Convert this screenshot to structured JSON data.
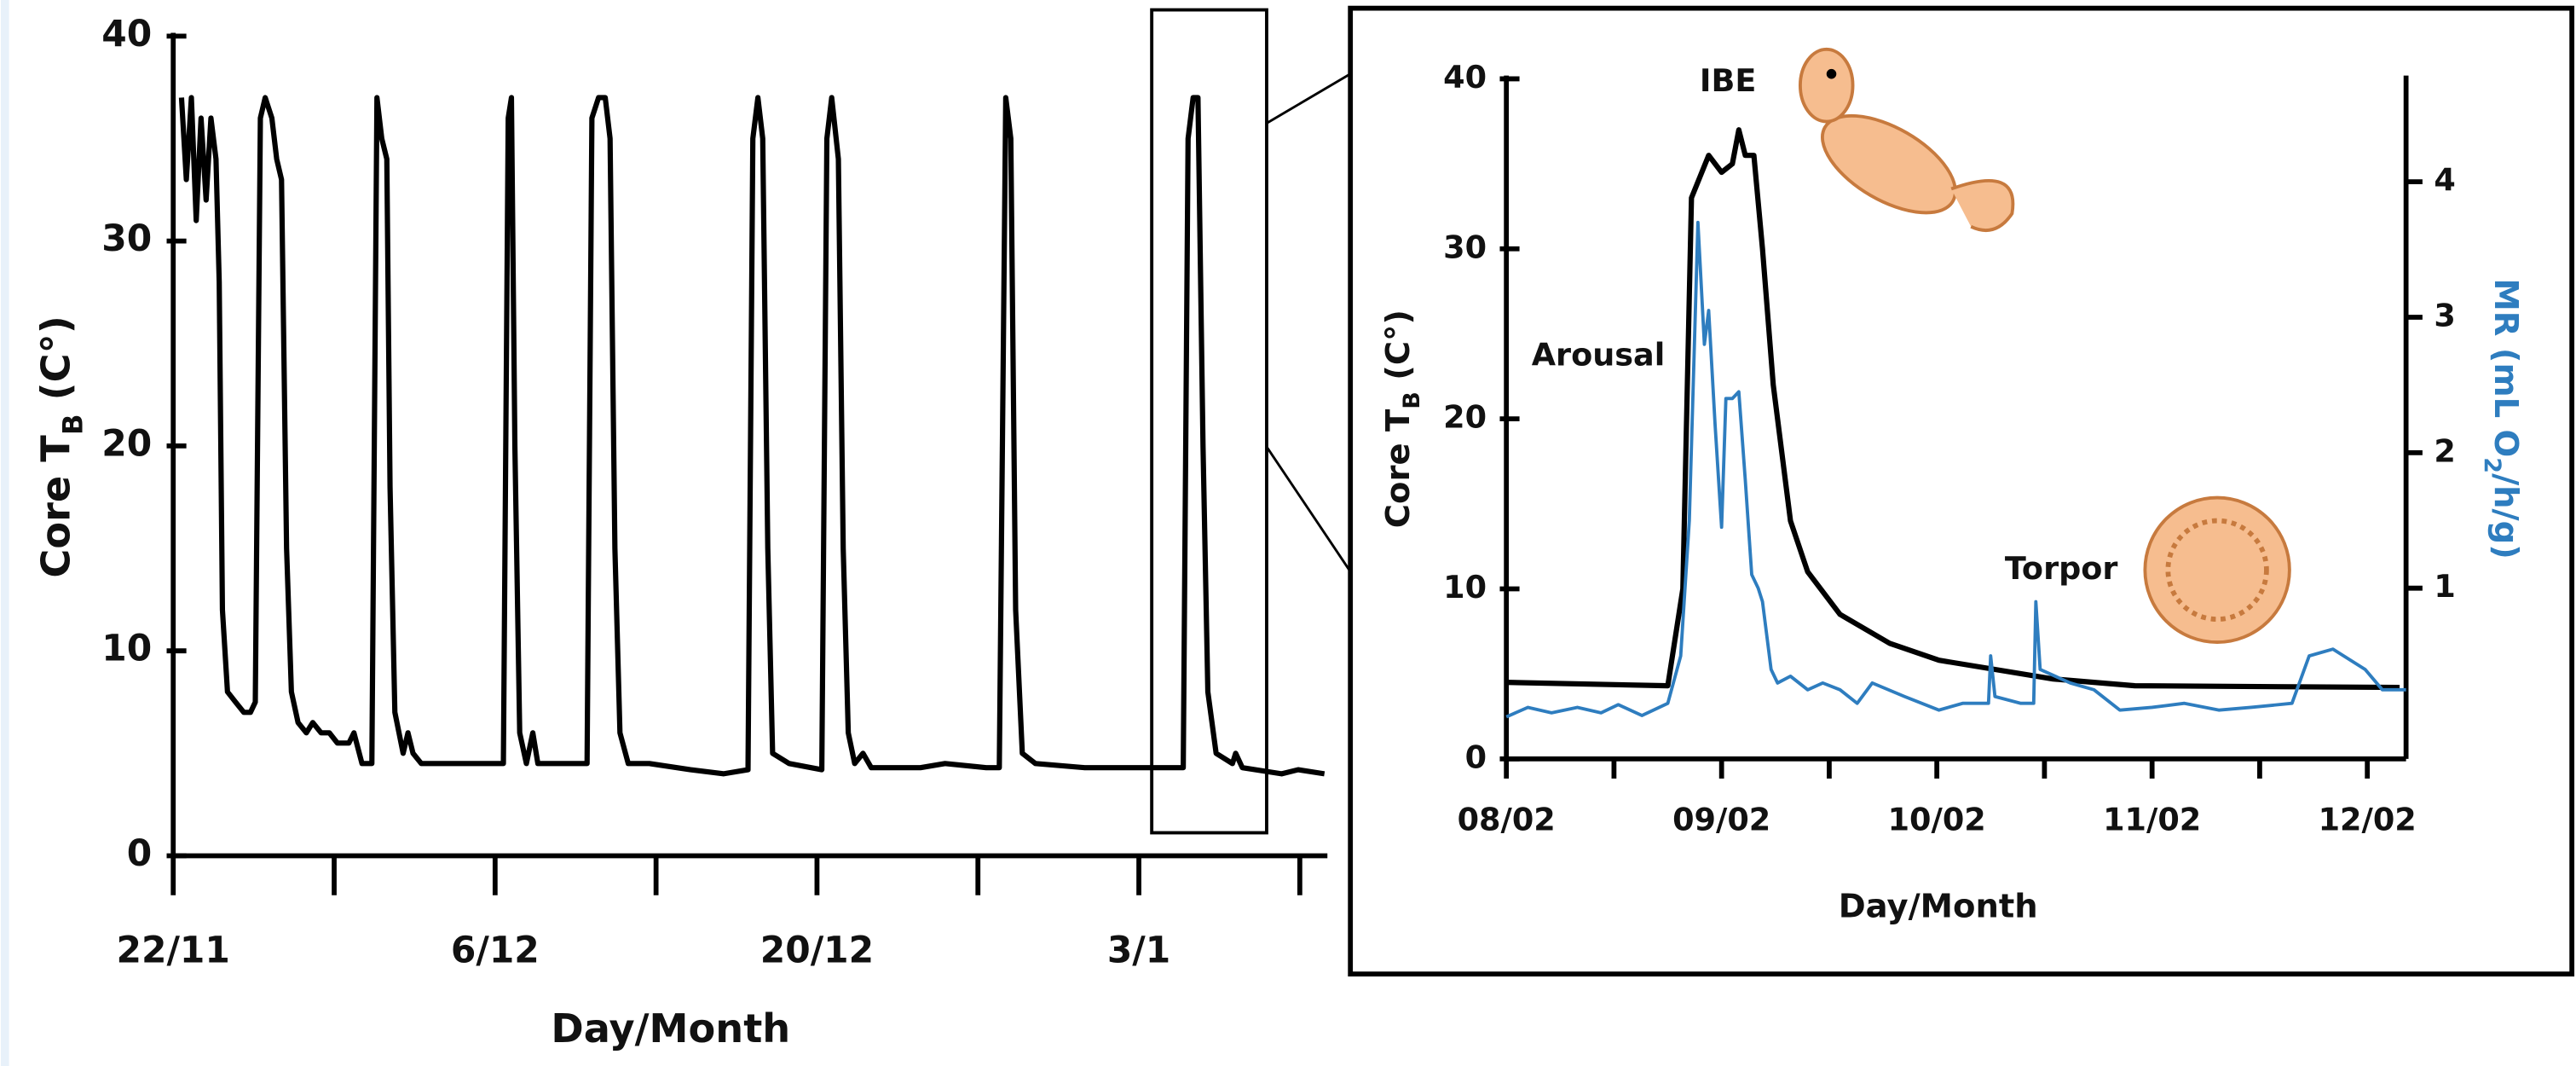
{
  "chart_data": [
    {
      "type": "line",
      "xlabel": "Day/Month",
      "ylabel": [
        "Core T",
        "B",
        " (C°)"
      ],
      "xlim": [
        0,
        50.2
      ],
      "ylim": [
        0,
        40
      ],
      "yticks": [
        0,
        10,
        20,
        30,
        40
      ],
      "xticks": [
        {
          "value": 0,
          "label": "22/11"
        },
        {
          "value": 7,
          "label": null
        },
        {
          "value": 14,
          "label": "6/12"
        },
        {
          "value": 21,
          "label": null
        },
        {
          "value": 28,
          "label": "20/12"
        },
        {
          "value": 35,
          "label": null
        },
        {
          "value": 42,
          "label": "3/1"
        },
        {
          "value": 49,
          "label": null
        }
      ],
      "series": [
        {
          "color": "#000000",
          "x": [
            0.36,
            0.57,
            0.79,
            1.0,
            1.21,
            1.43,
            1.64,
            1.86,
            2.0,
            2.14,
            2.36,
            2.71,
            3.07,
            3.36,
            3.57,
            3.79,
            4.0,
            4.29,
            4.5,
            4.71,
            4.93,
            5.14,
            5.43,
            5.79,
            6.07,
            6.43,
            6.79,
            7.14,
            7.64,
            7.86,
            8.21,
            8.64,
            8.86,
            9.07,
            9.29,
            9.43,
            9.64,
            10.0,
            10.21,
            10.43,
            10.79,
            11.43,
            12.5,
            13.93,
            14.36,
            14.57,
            14.71,
            14.86,
            15.07,
            15.36,
            15.64,
            15.86,
            17.14,
            18.0,
            18.21,
            18.5,
            18.79,
            19.0,
            19.21,
            19.43,
            19.79,
            20.71,
            22.5,
            23.93,
            25.0,
            25.21,
            25.43,
            25.64,
            25.86,
            26.07,
            26.79,
            28.21,
            28.43,
            28.64,
            28.93,
            29.14,
            29.36,
            29.64,
            30.0,
            30.36,
            32.5,
            33.57,
            35.36,
            35.93,
            36.21,
            36.43,
            36.64,
            36.93,
            37.5,
            39.64,
            41.79,
            43.93,
            44.14,
            44.36,
            44.57,
            44.79,
            45.0,
            45.36,
            46.07,
            46.21,
            46.5,
            48.21,
            48.93,
            50.07
          ],
          "values": [
            37,
            33,
            37,
            31,
            36,
            32,
            36,
            34,
            28,
            12,
            8,
            7.5,
            7,
            7,
            7.5,
            36,
            37,
            36,
            34,
            33,
            15,
            8,
            6.5,
            6,
            6.5,
            6,
            6,
            5.5,
            5.5,
            6,
            4.5,
            4.5,
            37,
            35,
            34,
            18,
            7,
            5,
            6,
            5,
            4.5,
            4.5,
            4.5,
            4.5,
            4.5,
            36,
            37,
            20,
            6,
            4.5,
            6,
            4.5,
            4.5,
            4.5,
            36,
            37,
            37,
            35,
            15,
            6,
            4.5,
            4.5,
            4.2,
            4,
            4.2,
            35,
            37,
            35,
            15,
            5,
            4.5,
            4.2,
            35,
            37,
            34,
            15,
            6,
            4.5,
            5,
            4.3,
            4.3,
            4.5,
            4.3,
            4.3,
            37,
            35,
            12,
            5,
            4.5,
            4.3,
            4.3,
            4.3,
            35,
            37,
            37,
            20,
            8,
            5,
            4.5,
            5,
            4.3,
            4,
            4.2,
            4
          ]
        }
      ]
    },
    {
      "type": "line",
      "xlabel": "Day/Month",
      "ylabel": [
        "Core T",
        "B",
        " (C°)"
      ],
      "y2label": [
        "MR (mL O",
        "2",
        "/h/g)"
      ],
      "y2color": "#2e7dbf",
      "annotations": [
        "IBE",
        "Arousal",
        "Torpor"
      ],
      "xlim": [
        0,
        4.18
      ],
      "ylim": [
        0,
        40
      ],
      "y2lim": [
        -0.26,
        4.76
      ],
      "yticks": [
        0,
        10,
        20,
        30,
        40
      ],
      "y2ticks": [
        1,
        2,
        3,
        4
      ],
      "xticks": [
        {
          "value": 0,
          "label": "08/02"
        },
        {
          "value": 0.5,
          "label": null
        },
        {
          "value": 1,
          "label": "09/02"
        },
        {
          "value": 1.5,
          "label": null
        },
        {
          "value": 2,
          "label": "10/02"
        },
        {
          "value": 2.5,
          "label": null
        },
        {
          "value": 3,
          "label": "11/02"
        },
        {
          "value": 3.5,
          "label": null
        },
        {
          "value": 4,
          "label": "12/02"
        }
      ],
      "series": [
        {
          "color": "#000000",
          "x": [
            0,
            0.75,
            0.82,
            0.86,
            0.94,
            1.0,
            1.05,
            1.08,
            1.11,
            1.15,
            1.19,
            1.24,
            1.32,
            1.4,
            1.55,
            1.78,
            2.01,
            2.54,
            2.92,
            4.15
          ],
          "values": [
            4.5,
            4.3,
            10,
            33,
            35.5,
            34.5,
            35,
            37,
            35.5,
            35.5,
            30,
            22,
            14,
            11,
            8.5,
            6.8,
            5.8,
            4.7,
            4.3,
            4.2
          ]
        },
        {
          "color": "#2e7dbf",
          "axis": "y2",
          "x": [
            0,
            0.1,
            0.21,
            0.33,
            0.44,
            0.52,
            0.63,
            0.75,
            0.81,
            0.85,
            0.89,
            0.92,
            0.94,
            0.97,
            1.0,
            1.02,
            1.05,
            1.08,
            1.11,
            1.14,
            1.17,
            1.19,
            1.23,
            1.26,
            1.32,
            1.4,
            1.47,
            1.55,
            1.63,
            1.7,
            1.85,
            2.01,
            2.12,
            2.24,
            2.25,
            2.27,
            2.39,
            2.45,
            2.46,
            2.48,
            2.62,
            2.73,
            2.85,
            3.0,
            3.15,
            3.31,
            3.46,
            3.65,
            3.73,
            3.84,
            3.99,
            4.07,
            4.18
          ],
          "values": [
            0.05,
            0.12,
            0.08,
            0.12,
            0.08,
            0.14,
            0.06,
            0.15,
            0.5,
            1.5,
            3.7,
            2.8,
            3.05,
            2.2,
            1.45,
            2.4,
            2.4,
            2.45,
            1.8,
            1.1,
            1.0,
            0.9,
            0.4,
            0.3,
            0.35,
            0.25,
            0.3,
            0.25,
            0.15,
            0.3,
            0.2,
            0.1,
            0.15,
            0.15,
            0.5,
            0.2,
            0.15,
            0.15,
            0.9,
            0.4,
            0.3,
            0.25,
            0.1,
            0.12,
            0.15,
            0.1,
            0.12,
            0.15,
            0.5,
            0.55,
            0.4,
            0.25,
            0.25
          ]
        }
      ]
    }
  ]
}
